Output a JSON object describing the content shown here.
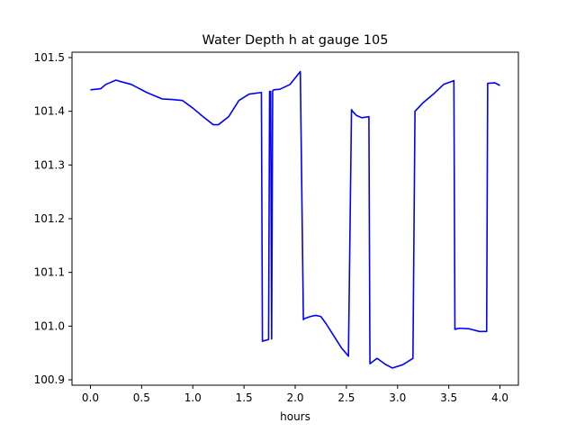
{
  "chart_data": {
    "type": "line",
    "title": "Water Depth h at gauge 105",
    "xlabel": "hours",
    "ylabel": "",
    "xlim": [
      -0.18,
      4.18
    ],
    "ylim": [
      100.89,
      101.51
    ],
    "x_ticks": [
      0.0,
      0.5,
      1.0,
      1.5,
      2.0,
      2.5,
      3.0,
      3.5,
      4.0
    ],
    "x_tick_labels": [
      "0.0",
      "0.5",
      "1.0",
      "1.5",
      "2.0",
      "2.5",
      "3.0",
      "3.5",
      "4.0"
    ],
    "y_ticks": [
      100.9,
      101.0,
      101.1,
      101.2,
      101.3,
      101.4,
      101.5
    ],
    "y_tick_labels": [
      "100.9",
      "101.0",
      "101.1",
      "101.2",
      "101.3",
      "101.4",
      "101.5"
    ],
    "grid": false,
    "legend": "none",
    "series": [
      {
        "color": "#0000ff",
        "x": [
          0.0,
          0.1,
          0.15,
          0.25,
          0.3,
          0.4,
          0.45,
          0.55,
          0.7,
          0.8,
          0.9,
          1.0,
          1.1,
          1.2,
          1.25,
          1.35,
          1.45,
          1.55,
          1.67,
          1.68,
          1.74,
          1.75,
          1.76,
          1.77,
          1.78,
          1.79,
          1.85,
          1.95,
          2.05,
          2.08,
          2.09,
          2.15,
          2.2,
          2.25,
          2.3,
          2.35,
          2.45,
          2.52,
          2.55,
          2.56,
          2.6,
          2.65,
          2.72,
          2.73,
          2.8,
          2.88,
          2.95,
          3.05,
          3.15,
          3.17,
          3.25,
          3.35,
          3.45,
          3.55,
          3.56,
          3.6,
          3.7,
          3.8,
          3.87,
          3.88,
          3.95,
          4.0
        ],
        "y": [
          101.44,
          101.442,
          101.45,
          101.458,
          101.455,
          101.45,
          101.445,
          101.435,
          101.423,
          101.422,
          101.42,
          101.406,
          101.39,
          101.375,
          101.375,
          101.39,
          101.42,
          101.432,
          101.435,
          100.972,
          100.975,
          101.437,
          101.437,
          100.976,
          101.438,
          101.44,
          101.441,
          101.45,
          101.474,
          101.012,
          101.014,
          101.018,
          101.02,
          101.018,
          101.005,
          100.99,
          100.96,
          100.944,
          101.403,
          101.4,
          101.392,
          101.388,
          101.39,
          100.93,
          100.94,
          100.929,
          100.922,
          100.928,
          100.94,
          101.4,
          101.416,
          101.432,
          101.45,
          101.457,
          100.994,
          100.996,
          100.995,
          100.99,
          100.99,
          101.452,
          101.453,
          101.448
        ]
      }
    ]
  }
}
